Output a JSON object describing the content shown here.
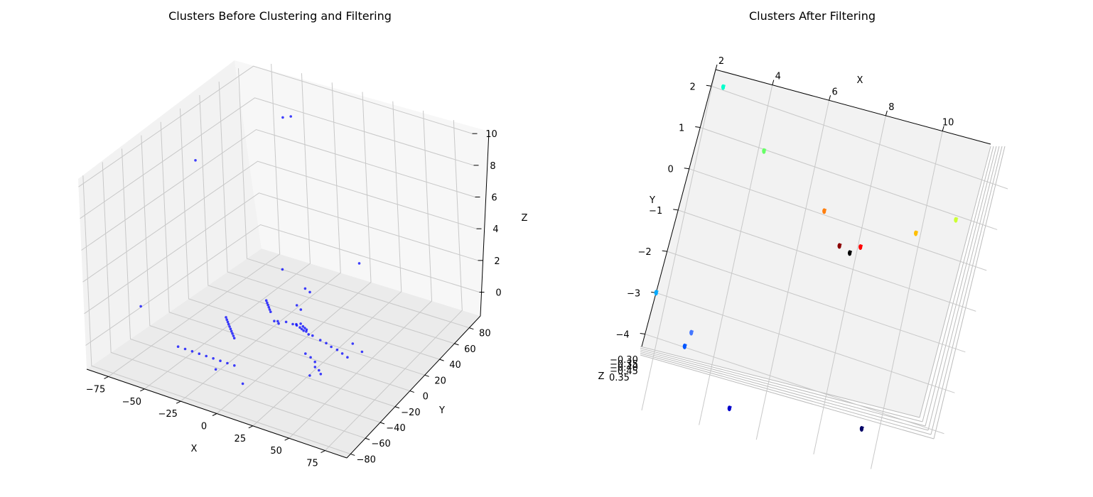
{
  "chart_data": [
    {
      "type": "scatter",
      "projection": "3d",
      "title": "Clusters Before Clustering and Filtering",
      "xlabel": "X",
      "ylabel": "Y",
      "zlabel": "Z",
      "xlim": [
        -90,
        90
      ],
      "ylim": [
        -85,
        95
      ],
      "zlim": [
        -1.5,
        10.5
      ],
      "x_ticks": [
        -75,
        -50,
        -25,
        0,
        25,
        50,
        75
      ],
      "y_ticks": [
        -80,
        -60,
        -40,
        -20,
        0,
        20,
        40,
        60,
        80
      ],
      "z_ticks": [
        0,
        2,
        4,
        6,
        8,
        10
      ],
      "grid": true,
      "point_color": "#0000ff",
      "points": [
        [
          -40,
          60,
          9.5
        ],
        [
          -35,
          62,
          9.6
        ],
        [
          -80,
          20,
          7.5
        ],
        [
          30,
          40,
          3.0
        ],
        [
          -85,
          -35,
          0.5
        ],
        [
          -20,
          25,
          2.0
        ],
        [
          -10,
          35,
          0.6
        ],
        [
          -5,
          33,
          0.6
        ],
        [
          -30,
          20,
          0
        ],
        [
          -28,
          18,
          0
        ],
        [
          -26,
          16,
          0
        ],
        [
          -24,
          14,
          0
        ],
        [
          -22,
          12,
          0
        ],
        [
          -20,
          10,
          0
        ],
        [
          -10,
          25,
          0
        ],
        [
          -5,
          22,
          0
        ],
        [
          -5,
          5,
          0
        ],
        [
          0,
          5,
          0
        ],
        [
          3,
          5,
          0
        ],
        [
          6,
          4,
          0
        ],
        [
          8,
          3,
          0
        ],
        [
          10,
          2,
          0
        ],
        [
          12,
          2,
          0
        ],
        [
          4,
          8,
          0
        ],
        [
          2,
          6,
          0
        ],
        [
          7,
          6,
          0
        ],
        [
          9,
          5,
          0
        ],
        [
          11,
          4,
          0
        ],
        [
          -12,
          2,
          0
        ],
        [
          -10,
          3,
          0
        ],
        [
          -8,
          1,
          0
        ],
        [
          15,
          0,
          0
        ],
        [
          18,
          0,
          0
        ],
        [
          25,
          -2,
          0
        ],
        [
          30,
          -3,
          0
        ],
        [
          35,
          -5,
          0
        ],
        [
          40,
          -6,
          0
        ],
        [
          45,
          -8,
          0
        ],
        [
          50,
          -10,
          0
        ],
        [
          55,
          0,
          0
        ],
        [
          45,
          5,
          0
        ],
        [
          -40,
          -10,
          0
        ],
        [
          -38,
          -12,
          0
        ],
        [
          -36,
          -14,
          0
        ],
        [
          -34,
          -16,
          0
        ],
        [
          -32,
          -18,
          0
        ],
        [
          -30,
          -20,
          0
        ],
        [
          -28,
          -22,
          0
        ],
        [
          -26,
          -24,
          0
        ],
        [
          -24,
          -26,
          0
        ],
        [
          -22,
          -28,
          0
        ],
        [
          25,
          -20,
          0
        ],
        [
          30,
          -22,
          0
        ],
        [
          35,
          -25,
          0
        ],
        [
          38,
          -30,
          0
        ],
        [
          42,
          -32,
          0
        ],
        [
          45,
          -35,
          0
        ],
        [
          40,
          -40,
          0
        ],
        [
          -45,
          -55,
          0
        ],
        [
          -40,
          -55,
          0
        ],
        [
          -35,
          -55,
          0
        ],
        [
          -30,
          -55,
          0
        ],
        [
          -25,
          -55,
          0
        ],
        [
          -20,
          -55,
          0
        ],
        [
          -15,
          -55,
          0
        ],
        [
          -10,
          -55,
          0
        ],
        [
          -5,
          -55,
          0
        ],
        [
          -12,
          -65,
          0
        ],
        [
          10,
          -70,
          0
        ]
      ]
    },
    {
      "type": "scatter",
      "projection": "3d",
      "title": "Clusters After Filtering",
      "xlabel": "X",
      "ylabel": "Y",
      "zlabel": "Z",
      "xlim": [
        2,
        11.7
      ],
      "ylim": [
        -4.3,
        2.4
      ],
      "x_ticks": [
        2,
        4,
        6,
        8,
        10
      ],
      "y_ticks": [
        -4,
        -3,
        -2,
        -1,
        0,
        1,
        2
      ],
      "z_ticks_visible": [
        "−0.30",
        "0.35"
      ],
      "grid": true,
      "clusters": [
        {
          "x": 2.4,
          "y": 2.05,
          "color": "#00ffcc"
        },
        {
          "x": 4.3,
          "y": 0.85,
          "color": "#66ff66"
        },
        {
          "x": 6.8,
          "y": -0.15,
          "color": "#ff7f0e"
        },
        {
          "x": 11.2,
          "y": 0.45,
          "color": "#ccff33"
        },
        {
          "x": 10.0,
          "y": -0.1,
          "color": "#ffbf00"
        },
        {
          "x": 8.3,
          "y": -0.75,
          "color": "#ff0000"
        },
        {
          "x": 7.6,
          "y": -0.85,
          "color": "#8b0000"
        },
        {
          "x": 8.0,
          "y": -0.95,
          "color": "#000000"
        },
        {
          "x": 2.0,
          "y": -3.0,
          "color": "#00aaff"
        },
        {
          "x": 3.5,
          "y": -3.7,
          "color": "#4477ff"
        },
        {
          "x": 3.4,
          "y": -4.05,
          "color": "#0055ff"
        },
        {
          "x": 5.4,
          "y": -5.2,
          "color": "#0000cc"
        },
        {
          "x": 9.9,
          "y": -4.9,
          "color": "#000066"
        }
      ]
    }
  ]
}
